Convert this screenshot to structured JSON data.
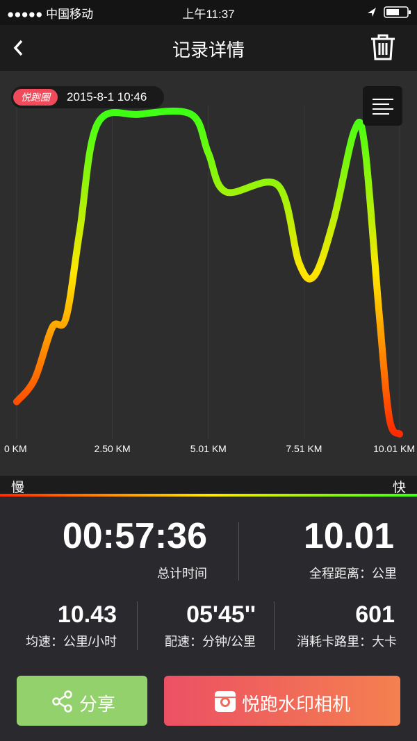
{
  "status_bar": {
    "carrier": "●●●●● 中国移动",
    "time": "上午11:37"
  },
  "header": {
    "title": "记录详情"
  },
  "record": {
    "badge": "悦跑圈",
    "date": "2015-8-1 10:46"
  },
  "chart_data": {
    "type": "line",
    "x": [
      0,
      0.47,
      0.93,
      1.29,
      1.65,
      2.11,
      3.2,
      4.56,
      5.01,
      5.47,
      6.83,
      7.38,
      7.78,
      8.28,
      8.83,
      9.1,
      9.47,
      9.74,
      10.01
    ],
    "values": [
      10,
      17,
      33,
      36,
      63,
      96,
      99,
      99,
      87,
      75,
      77,
      53,
      49,
      66,
      94,
      89,
      38,
      5,
      0
    ],
    "xlim": [
      0,
      10.01
    ],
    "ylim": [
      0,
      100
    ],
    "xticks": [
      {
        "value": 0,
        "label": "0 KM"
      },
      {
        "value": 2.5,
        "label": "2.50 KM"
      },
      {
        "value": 5.01,
        "label": "5.01 KM"
      },
      {
        "value": 7.51,
        "label": "7.51 KM"
      },
      {
        "value": 10.01,
        "label": "10.01 KM"
      }
    ],
    "grid": true,
    "color_scale": [
      "#ff2a00",
      "#ffe600",
      "#3dff14"
    ],
    "legend": {
      "slow": "慢",
      "fast": "快"
    }
  },
  "stats": {
    "time": "00:57:36",
    "time_label": "总计时间",
    "distance": "10.01",
    "distance_label": "全程距离：公里",
    "speed": "10.43",
    "speed_label": "均速：公里/小时",
    "pace": "05'45''",
    "pace_label": "配速：分钟/公里",
    "calories": "601",
    "calories_label": "消耗卡路里：大卡"
  },
  "buttons": {
    "share": "分享",
    "camera": "悦跑水印相机"
  }
}
